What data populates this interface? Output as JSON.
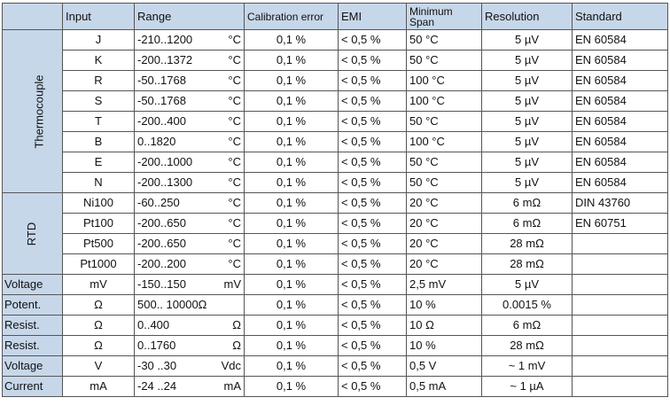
{
  "headers": {
    "input": "Input",
    "range": "Range",
    "calibration": "Calibration error",
    "emi": "EMI",
    "span": "Minimum Span",
    "resolution": "Resolution",
    "standard": "Standard"
  },
  "groups": {
    "thermocouple": "Thermocouple",
    "rtd": "RTD"
  },
  "thermocouple_rows": [
    {
      "type": "J",
      "range": "-210..1200",
      "unit": "°C",
      "cal": "0,1 %",
      "emi": "< 0,5 %",
      "span": "50 °C",
      "res": "5 µV",
      "std": "EN 60584"
    },
    {
      "type": "K",
      "range": "-200..1372",
      "unit": "°C",
      "cal": "0,1 %",
      "emi": "< 0,5 %",
      "span": "50 °C",
      "res": "5 µV",
      "std": "EN 60584"
    },
    {
      "type": "R",
      "range": "-50..1768",
      "unit": "°C",
      "cal": "0,1 %",
      "emi": "< 0,5 %",
      "span": "100 °C",
      "res": "5 µV",
      "std": "EN 60584"
    },
    {
      "type": "S",
      "range": "-50..1768",
      "unit": "°C",
      "cal": "0,1 %",
      "emi": "< 0,5 %",
      "span": "100 °C",
      "res": "5 µV",
      "std": "EN 60584"
    },
    {
      "type": "T",
      "range": "-200..400",
      "unit": "°C",
      "cal": "0,1 %",
      "emi": "< 0,5 %",
      "span": "50 °C",
      "res": "5 µV",
      "std": "EN 60584"
    },
    {
      "type": "B",
      "range": "0..1820",
      "unit": "°C",
      "cal": "0,1 %",
      "emi": "< 0,5 %",
      "span": "100 °C",
      "res": "5 µV",
      "std": "EN 60584"
    },
    {
      "type": "E",
      "range": "-200..1000",
      "unit": "°C",
      "cal": "0,1 %",
      "emi": "< 0,5 %",
      "span": "50 °C",
      "res": "5 µV",
      "std": "EN 60584"
    },
    {
      "type": "N",
      "range": "-200..1300",
      "unit": "°C",
      "cal": "0,1 %",
      "emi": "< 0,5 %",
      "span": "50 °C",
      "res": "5 µV",
      "std": "EN 60584"
    }
  ],
  "rtd_rows": [
    {
      "type": "Ni100",
      "range": "-60..250",
      "unit": "°C",
      "cal": "0,1 %",
      "emi": "< 0,5 %",
      "span": "20 °C",
      "res": "6 mΩ",
      "std": "DIN 43760"
    },
    {
      "type": "Pt100",
      "range": "-200..650",
      "unit": "°C",
      "cal": "0,1 %",
      "emi": "< 0,5 %",
      "span": "20 °C",
      "res": "6 mΩ",
      "std": "EN 60751"
    },
    {
      "type": "Pt500",
      "range": "-200..650",
      "unit": "°C",
      "cal": "0,1 %",
      "emi": "< 0,5 %",
      "span": "20 °C",
      "res": "28 mΩ",
      "std": ""
    },
    {
      "type": "Pt1000",
      "range": "-200..200",
      "unit": "°C",
      "cal": "0,1 %",
      "emi": "< 0,5 %",
      "span": "20 °C",
      "res": "28 mΩ",
      "std": ""
    }
  ],
  "other_rows": [
    {
      "label": "Voltage",
      "type": "mV",
      "range": "-150..150",
      "unit": "mV",
      "cal": "0,1 %",
      "emi": "< 0,5 %",
      "span": "2,5 mV",
      "res": "5 µV",
      "std": ""
    },
    {
      "label": "Potent.",
      "type": "Ω",
      "range": "500.. 10000Ω",
      "unit": "",
      "cal": "0,1 %",
      "emi": "< 0,5 %",
      "span": "10 %",
      "res": "0.0015 %",
      "std": ""
    },
    {
      "label": "Resist.",
      "type": "Ω",
      "range": "0..400",
      "unit": "Ω",
      "cal": "0,1 %",
      "emi": "< 0,5 %",
      "span": "10 Ω",
      "res": "6 mΩ",
      "std": ""
    },
    {
      "label": "Resist.",
      "type": "Ω",
      "range": "0..1760",
      "unit": "Ω",
      "cal": "0,1 %",
      "emi": "< 0,5 %",
      "span": "10 %",
      "res": "28 mΩ",
      "std": ""
    },
    {
      "label": "Voltage",
      "type": "V",
      "range": "-30 ..30",
      "unit": "Vdc",
      "cal": "0,1 %",
      "emi": "< 0,5 %",
      "span": "0,5 V",
      "res": "~ 1 mV",
      "std": ""
    },
    {
      "label": "Current",
      "type": "mA",
      "range": "-24 ..24",
      "unit": "mA",
      "cal": "0,1 %",
      "emi": "< 0,5 %",
      "span": "0,5 mA",
      "res": "~ 1 µA",
      "std": ""
    }
  ]
}
